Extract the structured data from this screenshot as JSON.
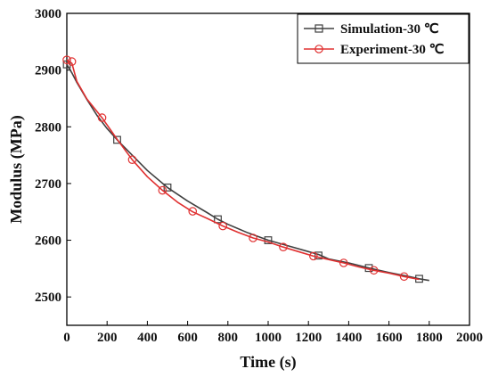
{
  "chart_data": {
    "type": "line",
    "xlabel": "Time (s)",
    "ylabel": "Modulus (MPa)",
    "xlim": [
      0,
      2000
    ],
    "ylim": [
      2450,
      3000
    ],
    "xticks": [
      0,
      200,
      400,
      600,
      800,
      1000,
      1200,
      1400,
      1600,
      1800,
      2000
    ],
    "yticks": [
      2500,
      2600,
      2700,
      2800,
      2900,
      3000
    ],
    "grid": false,
    "legend_position": "top-right",
    "series": [
      {
        "name": "Simulation-30 ℃",
        "color": "#404040",
        "marker": "square",
        "x": [
          0,
          25,
          50,
          100,
          150,
          200,
          250,
          300,
          400,
          500,
          600,
          700,
          750,
          800,
          900,
          1000,
          1100,
          1200,
          1250,
          1300,
          1400,
          1500,
          1600,
          1700,
          1750,
          1800
        ],
        "y": [
          2910,
          2895,
          2878,
          2848,
          2820,
          2797,
          2777,
          2759,
          2723,
          2693,
          2669,
          2648,
          2637,
          2628,
          2613,
          2600,
          2590,
          2580,
          2575,
          2567,
          2560,
          2551,
          2543,
          2536,
          2532,
          2529
        ],
        "marker_x": [
          0,
          250,
          500,
          750,
          1000,
          1250,
          1500,
          1750
        ],
        "marker_y": [
          2910,
          2777,
          2693,
          2637,
          2600,
          2573,
          2551,
          2532
        ]
      },
      {
        "name": "Experiment-30 ℃",
        "color": "#e03030",
        "marker": "circle",
        "x": [
          0,
          25,
          50,
          100,
          175,
          250,
          325,
          400,
          475,
          550,
          625,
          700,
          775,
          850,
          925,
          1000,
          1075,
          1150,
          1225,
          1300,
          1375,
          1450,
          1525,
          1600,
          1675,
          1750
        ],
        "y": [
          2918,
          2912,
          2880,
          2849,
          2816,
          2778,
          2742,
          2712,
          2688,
          2667,
          2650,
          2638,
          2625,
          2614,
          2604,
          2597,
          2588,
          2580,
          2572,
          2566,
          2560,
          2553,
          2547,
          2542,
          2536,
          2531
        ],
        "marker_x": [
          0,
          25,
          175,
          325,
          475,
          625,
          775,
          925,
          1075,
          1225,
          1375,
          1525,
          1675
        ],
        "marker_y": [
          2918,
          2915,
          2816,
          2742,
          2688,
          2651,
          2625,
          2604,
          2588,
          2572,
          2560,
          2547,
          2536
        ]
      }
    ]
  }
}
